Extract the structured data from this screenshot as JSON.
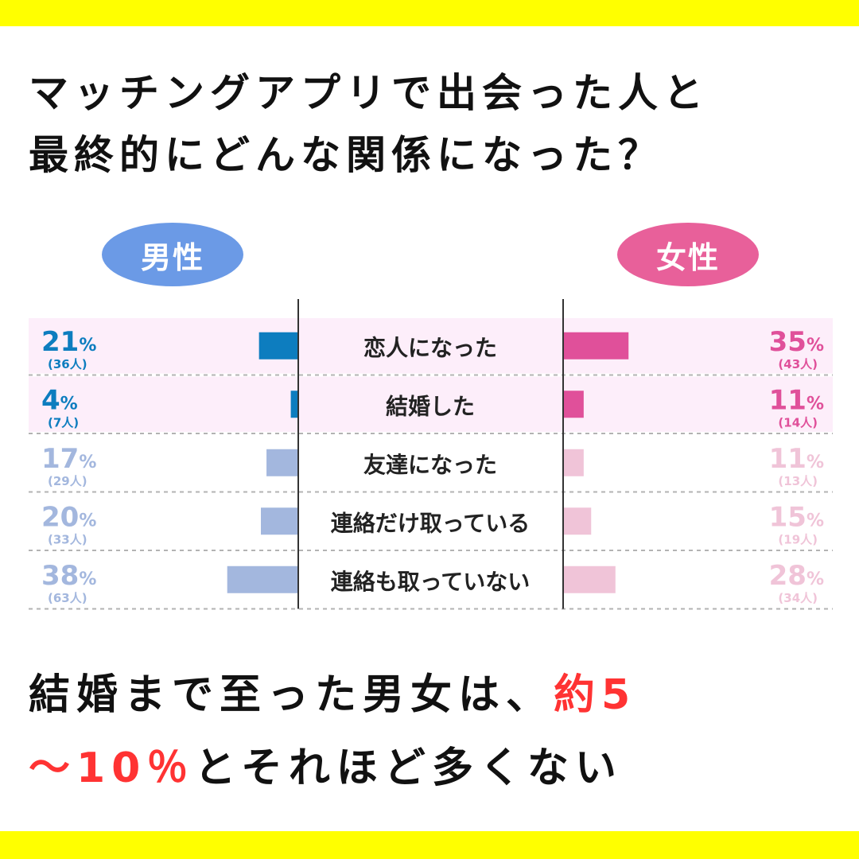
{
  "title_lines": [
    "マッチングアプリで出会った人と",
    "最終的にどんな関係になった？"
  ],
  "legend": {
    "male": {
      "label": "男性",
      "color": "#6b9ae6"
    },
    "female": {
      "label": "女性",
      "color": "#e8609a"
    }
  },
  "conclusion": {
    "part1": "結婚まで至った男女は、",
    "highlight": "約5〜10％",
    "part2": "とそれほど多くない"
  },
  "colors": {
    "highlight_red": "#ff3333",
    "band_yellow": "#ffff00",
    "row_highlight": "#fdeefa",
    "male_strong": "#0d7dbf",
    "male_light": "#a3b7de",
    "female_strong": "#e0509a",
    "female_light": "#f0c4d8"
  },
  "chart_data": {
    "type": "bar",
    "layout": "butterfly",
    "categories": [
      "恋人になった",
      "結婚した",
      "友達になった",
      "連絡だけ取っている",
      "連絡も取っていない"
    ],
    "highlighted_categories": [
      "恋人になった",
      "結婚した"
    ],
    "series": [
      {
        "name": "男性",
        "values": [
          21,
          4,
          17,
          20,
          38
        ],
        "counts": [
          "(36人)",
          "(7人)",
          "(29人)",
          "(33人)",
          "(63人)"
        ]
      },
      {
        "name": "女性",
        "values": [
          35,
          11,
          11,
          15,
          28
        ],
        "counts": [
          "(43人)",
          "(14人)",
          "(13人)",
          "(19人)",
          "(34人)"
        ]
      }
    ],
    "unit": "%",
    "xlim": [
      0,
      100
    ]
  }
}
